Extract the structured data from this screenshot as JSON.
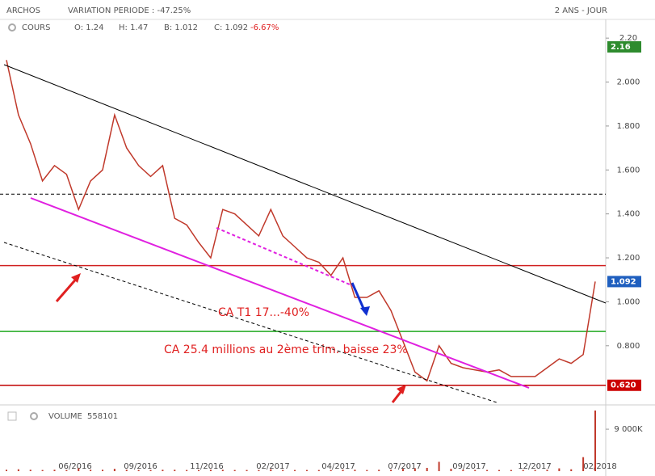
{
  "chart_data": {
    "type": "line",
    "title": "ARCHOS",
    "subtitle": "VARIATION PERIODE : -47.25%",
    "period": "2 ANS - JOUR",
    "series_label": "COURS",
    "ohlc_labels": [
      "O: 1.24",
      "H: 1.47",
      "B: 1.012",
      "C: 1.092"
    ],
    "change_label": "-6.67%",
    "x_labels": [
      "06/2016",
      "09/2016",
      "11/2016",
      "02/2017",
      "04/2017",
      "07/2017",
      "09/2017",
      "12/2017",
      "02/2018"
    ],
    "series": [
      {
        "name": "COURS",
        "color": "#c0392b",
        "values": [
          2.1,
          1.85,
          1.72,
          1.55,
          1.62,
          1.58,
          1.42,
          1.55,
          1.6,
          1.85,
          1.7,
          1.62,
          1.57,
          1.62,
          1.38,
          1.35,
          1.27,
          1.2,
          1.42,
          1.4,
          1.35,
          1.3,
          1.42,
          1.3,
          1.25,
          1.2,
          1.18,
          1.12,
          1.2,
          1.02,
          1.02,
          1.05,
          0.96,
          0.82,
          0.68,
          0.64,
          0.8,
          0.72,
          0.7,
          0.69,
          0.68,
          0.69,
          0.66,
          0.66,
          0.66,
          0.7,
          0.74,
          0.72,
          0.76,
          1.092
        ]
      }
    ],
    "ylim": [
      0.54,
      2.23
    ],
    "yticks": [
      {
        "value": 2.2,
        "label": "2.20"
      },
      {
        "value": 2.0,
        "label": "2.000"
      },
      {
        "value": 1.8,
        "label": "1.800"
      },
      {
        "value": 1.6,
        "label": "1.600"
      },
      {
        "value": 1.4,
        "label": "1.400"
      },
      {
        "value": 1.2,
        "label": "1.200"
      },
      {
        "value": 1.0,
        "label": "1.000"
      },
      {
        "value": 0.8,
        "label": "0.800"
      }
    ],
    "hlines": [
      {
        "value": 1.49,
        "color": "#000000",
        "dashed": true
      },
      {
        "value": 1.165,
        "color": "#d02020",
        "dashed": false
      },
      {
        "value": 0.865,
        "color": "#22aa22",
        "dashed": false
      },
      {
        "value": 0.62,
        "color": "#c00000",
        "dashed": false
      }
    ],
    "badges": [
      {
        "value": 2.16,
        "label": "2.16",
        "color": "#2e8b2e"
      },
      {
        "value": 1.092,
        "label": "1.092",
        "color": "#1f5fbf"
      },
      {
        "value": 0.62,
        "label": "0.620",
        "color": "#cc0000"
      }
    ],
    "annotations": [
      "CA T1 17...-40%",
      "CA 25.4 millions au 2ème trim. baisse 23%"
    ],
    "volume": {
      "label": "VOLUME",
      "last": "558101",
      "color": "#c0392b",
      "values": [
        300,
        400,
        300,
        250,
        300,
        250,
        600,
        300,
        300,
        500,
        300,
        250,
        250,
        300,
        300,
        250,
        250,
        300,
        300,
        250,
        250,
        250,
        400,
        250,
        250,
        250,
        250,
        250,
        300,
        300,
        250,
        300,
        300,
        500,
        600,
        700,
        2000,
        500,
        300,
        250,
        250,
        250,
        250,
        250,
        250,
        300,
        600,
        400,
        3000,
        13000
      ],
      "ylim": [
        0,
        13000
      ],
      "yticks": [
        {
          "value": 9000,
          "label": "9 000K"
        }
      ]
    }
  }
}
